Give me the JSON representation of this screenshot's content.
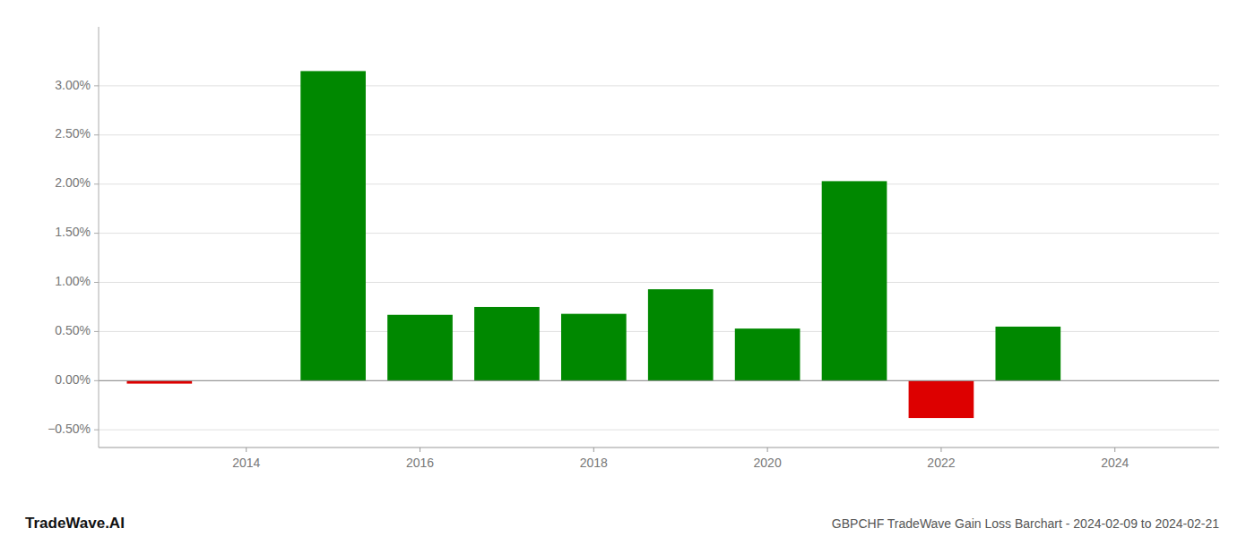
{
  "chart_data": {
    "type": "bar",
    "title": "GBPCHF TradeWave Gain Loss Barchart - 2024-02-09 to 2024-02-21",
    "annotations": [
      "TradeWave.AI"
    ],
    "x": [
      2013,
      2015,
      2016,
      2017,
      2018,
      2019,
      2020,
      2021,
      2022,
      2023
    ],
    "values": [
      -0.0003,
      0.0315,
      0.0067,
      0.0075,
      0.0068,
      0.0093,
      0.0053,
      0.0203,
      -0.0038,
      0.0055
    ],
    "colors": [
      "#dd0000",
      "#008800",
      "#008800",
      "#008800",
      "#008800",
      "#008800",
      "#008800",
      "#008800",
      "#dd0000",
      "#008800"
    ],
    "xlim": [
      2012.3,
      2025.2
    ],
    "xticks": [
      2014,
      2016,
      2018,
      2020,
      2022,
      2024
    ],
    "ylim": [
      -0.0068,
      0.036
    ],
    "yticks": [
      {
        "value": -0.005,
        "label": "−0.50%"
      },
      {
        "value": 0.0,
        "label": "0.00%"
      },
      {
        "value": 0.005,
        "label": "0.50%"
      },
      {
        "value": 0.01,
        "label": "1.00%"
      },
      {
        "value": 0.015,
        "label": "1.50%"
      },
      {
        "value": 0.02,
        "label": "2.00%"
      },
      {
        "value": 0.025,
        "label": "2.50%"
      },
      {
        "value": 0.03,
        "label": "3.00%"
      }
    ],
    "grid": true
  }
}
